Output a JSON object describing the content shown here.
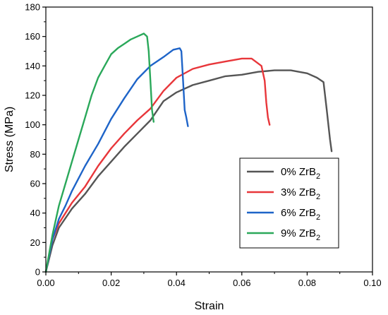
{
  "chart_data": {
    "type": "line",
    "xlabel": "Strain",
    "ylabel": "Stress (MPa)",
    "xlim": [
      0,
      0.1
    ],
    "ylim": [
      0,
      180
    ],
    "xticks": [
      "0.00",
      "0.02",
      "0.04",
      "0.06",
      "0.08",
      "0.10"
    ],
    "yticks": [
      "0",
      "20",
      "40",
      "60",
      "80",
      "100",
      "120",
      "140",
      "160",
      "180"
    ],
    "grid": false,
    "legend_position": "bottom-right",
    "series": [
      {
        "name": "0% ZrB2",
        "label_main": "0% ZrB",
        "label_sub": "2",
        "color": "#555555",
        "x": [
          0,
          0.002,
          0.004,
          0.008,
          0.012,
          0.016,
          0.02,
          0.024,
          0.028,
          0.032,
          0.036,
          0.04,
          0.045,
          0.05,
          0.055,
          0.06,
          0.065,
          0.07,
          0.075,
          0.08,
          0.083,
          0.085,
          0.086,
          0.0865,
          0.087,
          0.0875
        ],
        "y": [
          0,
          18,
          30,
          43,
          53,
          65,
          75,
          85,
          94,
          103,
          116,
          122,
          127,
          130,
          133,
          134,
          136,
          137,
          137,
          135,
          132,
          129,
          110,
          100,
          90,
          82
        ]
      },
      {
        "name": "3% ZrB2",
        "label_main": "3% ZrB",
        "label_sub": "2",
        "color": "#e8363a",
        "x": [
          0,
          0.002,
          0.004,
          0.008,
          0.012,
          0.016,
          0.02,
          0.024,
          0.028,
          0.032,
          0.036,
          0.04,
          0.045,
          0.05,
          0.055,
          0.06,
          0.063,
          0.066,
          0.067,
          0.0675,
          0.068,
          0.0685
        ],
        "y": [
          0,
          22,
          33,
          47,
          58,
          72,
          84,
          94,
          103,
          111,
          123,
          132,
          138,
          141,
          143,
          145,
          145,
          140,
          130,
          115,
          105,
          100
        ]
      },
      {
        "name": "6% ZrB2",
        "label_main": "6% ZrB",
        "label_sub": "2",
        "color": "#1e64c8",
        "x": [
          0,
          0.002,
          0.004,
          0.006,
          0.008,
          0.012,
          0.016,
          0.02,
          0.024,
          0.028,
          0.032,
          0.036,
          0.039,
          0.041,
          0.0415,
          0.042,
          0.0425,
          0.043,
          0.0435
        ],
        "y": [
          0,
          22,
          36,
          45,
          55,
          72,
          87,
          104,
          118,
          131,
          140,
          146,
          151,
          152,
          150,
          130,
          110,
          105,
          99
        ]
      },
      {
        "name": "9% ZrB2",
        "label_main": "9% ZrB",
        "label_sub": "2",
        "color": "#2aa85a",
        "x": [
          0,
          0.002,
          0.004,
          0.006,
          0.008,
          0.01,
          0.012,
          0.014,
          0.016,
          0.018,
          0.02,
          0.022,
          0.024,
          0.026,
          0.028,
          0.03,
          0.031,
          0.0315,
          0.032,
          0.0325,
          0.033
        ],
        "y": [
          0,
          25,
          45,
          60,
          75,
          90,
          105,
          120,
          132,
          140,
          148,
          152,
          155,
          158,
          160,
          162,
          160,
          150,
          130,
          110,
          102
        ]
      }
    ]
  }
}
